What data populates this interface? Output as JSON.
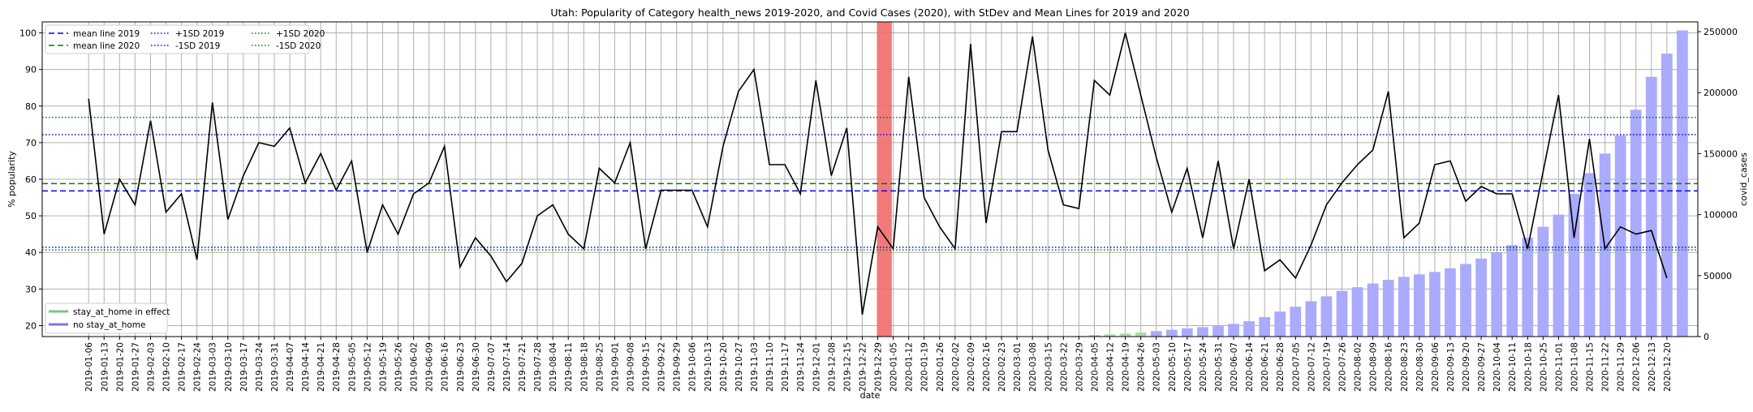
{
  "chart_data": {
    "type": "line",
    "title": "Utah: Popularity of Category health_news 2019-2020, and Covid Cases (2020), with StDev and Mean Lines for 2019 and 2020",
    "xlabel": "date",
    "ylabel": "% popularity",
    "y2label": "covid_cases",
    "ylim": [
      17,
      103
    ],
    "y2lim": [
      0,
      258000
    ],
    "yticks": [
      20,
      30,
      40,
      50,
      60,
      70,
      80,
      90,
      100
    ],
    "y2ticks": [
      0,
      50000,
      100000,
      150000,
      200000,
      250000
    ],
    "grid": true,
    "x": [
      "2019-01-06",
      "2019-01-13",
      "2019-01-20",
      "2019-01-27",
      "2019-02-03",
      "2019-02-10",
      "2019-02-17",
      "2019-02-24",
      "2019-03-03",
      "2019-03-10",
      "2019-03-17",
      "2019-03-24",
      "2019-03-31",
      "2019-04-07",
      "2019-04-14",
      "2019-04-21",
      "2019-04-28",
      "2019-05-05",
      "2019-05-12",
      "2019-05-19",
      "2019-05-26",
      "2019-06-02",
      "2019-06-09",
      "2019-06-16",
      "2019-06-23",
      "2019-06-30",
      "2019-07-07",
      "2019-07-14",
      "2019-07-21",
      "2019-07-28",
      "2019-08-04",
      "2019-08-11",
      "2019-08-18",
      "2019-08-25",
      "2019-09-01",
      "2019-09-08",
      "2019-09-15",
      "2019-09-22",
      "2019-09-29",
      "2019-10-06",
      "2019-10-13",
      "2019-10-20",
      "2019-10-27",
      "2019-11-03",
      "2019-11-10",
      "2019-11-17",
      "2019-11-24",
      "2019-12-01",
      "2019-12-08",
      "2019-12-15",
      "2019-12-22",
      "2019-12-29",
      "2020-01-05",
      "2020-01-12",
      "2020-01-19",
      "2020-01-26",
      "2020-02-02",
      "2020-02-09",
      "2020-02-16",
      "2020-02-23",
      "2020-03-01",
      "2020-03-08",
      "2020-03-15",
      "2020-03-22",
      "2020-03-29",
      "2020-04-05",
      "2020-04-12",
      "2020-04-19",
      "2020-04-26",
      "2020-05-03",
      "2020-05-10",
      "2020-05-17",
      "2020-05-24",
      "2020-05-31",
      "2020-06-07",
      "2020-06-14",
      "2020-06-21",
      "2020-06-28",
      "2020-07-05",
      "2020-07-12",
      "2020-07-19",
      "2020-07-26",
      "2020-08-02",
      "2020-08-09",
      "2020-08-16",
      "2020-08-23",
      "2020-08-30",
      "2020-09-06",
      "2020-09-13",
      "2020-09-20",
      "2020-09-27",
      "2020-10-04",
      "2020-10-11",
      "2020-10-18",
      "2020-10-25",
      "2020-11-01",
      "2020-11-08",
      "2020-11-15",
      "2020-11-22",
      "2020-11-29",
      "2020-12-06",
      "2020-12-13",
      "2020-12-20"
    ],
    "x_tick_labels": [
      "2019-01-06",
      "2019-01-13",
      "2019-01-20",
      "2019-01-27",
      "2019-02-03",
      "2019-02-10",
      "2019-02-17",
      "2019-02-24",
      "2019-03-03",
      "2019-03-10",
      "2019-03-17",
      "2019-03-24",
      "2019-03-31",
      "2019-04-07",
      "2019-04-14",
      "2019-04-21",
      "2019-04-28",
      "2019-05-05",
      "2019-05-12",
      "2019-05-19",
      "2019-05-26",
      "2019-06-02",
      "2019-06-09",
      "2019-06-16",
      "2019-06-23",
      "2019-06-30",
      "2019-07-07",
      "2019-07-14",
      "2019-07-21",
      "2019-07-28",
      "2019-08-04",
      "2019-08-11",
      "2019-08-18",
      "2019-08-25",
      "2019-09-01",
      "2019-09-08",
      "2019-09-15",
      "2019-09-22",
      "2019-09-29",
      "2019-10-06",
      "2019-10-13",
      "2019-10-20",
      "2019-10-27",
      "2019-11-03",
      "2019-11-10",
      "2019-11-17",
      "2019-11-24",
      "2019-12-01",
      "2019-12-08",
      "2019-12-15",
      "2019-12-22",
      "2019-12-29",
      "2020-01-05",
      "2020-01-12",
      "2020-01-19",
      "2020-01-26",
      "2020-02-02",
      "2020-02-09",
      "2020-02-16",
      "2020-02-23",
      "2020-03-01",
      "2020-03-08",
      "2020-03-15",
      "2020-03-22",
      "2020-03-29",
      "2020-04-05",
      "2020-04-12",
      "2020-04-19",
      "2020-04-26",
      "2020-05-03",
      "2020-05-10",
      "2020-05-17",
      "2020-05-24",
      "2020-05-31",
      "2020-06-07",
      "2020-06-14",
      "2020-06-21",
      "2020-06-28",
      "2020-07-05",
      "2020-07-12",
      "2020-07-19",
      "2020-07-26",
      "2020-08-02",
      "2020-08-09",
      "2020-08-16",
      "2020-08-23",
      "2020-08-30",
      "2020-09-06",
      "2020-09-13",
      "2020-09-20",
      "2020-09-27",
      "2020-10-04",
      "2020-10-11",
      "2020-10-18",
      "2020-10-25",
      "2020-11-01",
      "2020-11-08",
      "2020-11-15",
      "2020-11-22",
      "2020-11-29",
      "2020-12-06",
      "2020-12-13",
      "2020-12-20"
    ],
    "popularity": [
      82,
      45,
      60,
      53,
      76,
      51,
      56,
      38,
      81,
      49,
      61,
      70,
      69,
      74,
      59,
      67,
      57,
      65,
      40,
      53,
      45,
      56,
      59,
      69,
      36,
      44,
      39,
      32,
      37,
      50,
      53,
      45,
      41,
      63,
      59,
      70,
      41,
      57,
      57,
      57,
      47,
      69,
      84,
      90,
      64,
      64,
      56,
      87,
      61,
      74,
      23,
      47,
      41,
      88,
      55,
      47,
      41,
      97,
      48,
      73,
      73,
      99,
      68,
      53,
      52,
      87,
      83,
      100,
      83,
      66,
      51,
      63,
      44,
      65,
      41,
      60,
      35,
      38,
      33,
      42,
      53,
      59,
      64,
      68,
      84,
      44,
      48,
      64,
      65,
      54,
      58,
      56,
      56,
      41,
      62,
      83,
      44,
      71,
      41,
      47,
      45,
      46,
      33
    ],
    "covid_cases": [
      null,
      null,
      null,
      null,
      null,
      null,
      null,
      null,
      null,
      null,
      null,
      null,
      null,
      null,
      null,
      null,
      null,
      null,
      null,
      null,
      null,
      null,
      null,
      null,
      null,
      null,
      null,
      null,
      null,
      null,
      null,
      null,
      null,
      null,
      null,
      null,
      null,
      null,
      null,
      null,
      null,
      null,
      null,
      null,
      null,
      null,
      null,
      null,
      null,
      null,
      null,
      null,
      null,
      null,
      null,
      null,
      null,
      null,
      null,
      null,
      null,
      null,
      null,
      null,
      500,
      1300,
      1800,
      2500,
      3300,
      4500,
      5600,
      6700,
      7700,
      8600,
      10400,
      12600,
      16000,
      20500,
      24500,
      29000,
      33000,
      37500,
      40500,
      43500,
      46500,
      49000,
      51000,
      53000,
      56000,
      59500,
      64000,
      69000,
      75000,
      81000,
      90000,
      100000,
      117000,
      134000,
      150000,
      165000,
      186000,
      213000,
      232000,
      251000
    ],
    "stay_at_home_flags": [
      false,
      false,
      false,
      false,
      false,
      false,
      false,
      false,
      false,
      false,
      false,
      false,
      false,
      false,
      false,
      false,
      false,
      false,
      false,
      false,
      false,
      false,
      false,
      false,
      false,
      false,
      false,
      false,
      false,
      false,
      false,
      false,
      false,
      false,
      false,
      false,
      false,
      false,
      false,
      false,
      false,
      false,
      false,
      false,
      false,
      false,
      false,
      false,
      false,
      false,
      false,
      false,
      false,
      false,
      false,
      false,
      false,
      false,
      false,
      false,
      false,
      false,
      false,
      false,
      true,
      true,
      true,
      true,
      true,
      false,
      false,
      false,
      false,
      false,
      false,
      false,
      false,
      false,
      false,
      false,
      false,
      false,
      false,
      false,
      false,
      false,
      false,
      false,
      false,
      false,
      false,
      false,
      false,
      false,
      false,
      false,
      false,
      false,
      false,
      false,
      false,
      false,
      false
    ],
    "highlight_week": "2020-01-01",
    "reference_lines": {
      "mean_2019": 56.8,
      "mean_2020": 58.8,
      "plus_1sd_2019": 72.2,
      "minus_1sd_2019": 41.4,
      "plus_1sd_2020": 76.9,
      "minus_1sd_2020": 40.7
    },
    "legend_top": {
      "placement": "top-left",
      "entries": [
        {
          "label": "mean line 2019",
          "color": "#0000ff",
          "style": "dashed"
        },
        {
          "label": "mean line 2020",
          "color": "#008000",
          "style": "dashed"
        },
        {
          "label": "+1SD 2019",
          "color": "#0000ff",
          "style": "dotted"
        },
        {
          "label": "-1SD 2019",
          "color": "#0000ff",
          "style": "dotted"
        },
        {
          "label": "+1SD 2020",
          "color": "#008000",
          "style": "dotted"
        },
        {
          "label": "-1SD 2020",
          "color": "#008000",
          "style": "dotted"
        }
      ]
    },
    "legend_bottom": {
      "placement": "bottom-left",
      "entries": [
        {
          "label": "stay_at_home in effect",
          "color": "#7fc47f"
        },
        {
          "label": "no stay_at_home",
          "color": "#7878f0"
        }
      ]
    },
    "colors": {
      "line": "#000000",
      "bar_no_stay": "#aaaaff",
      "bar_stay": "#a8dca8",
      "highlight": "#f26b6b",
      "grid": "#b0b0b0"
    }
  }
}
